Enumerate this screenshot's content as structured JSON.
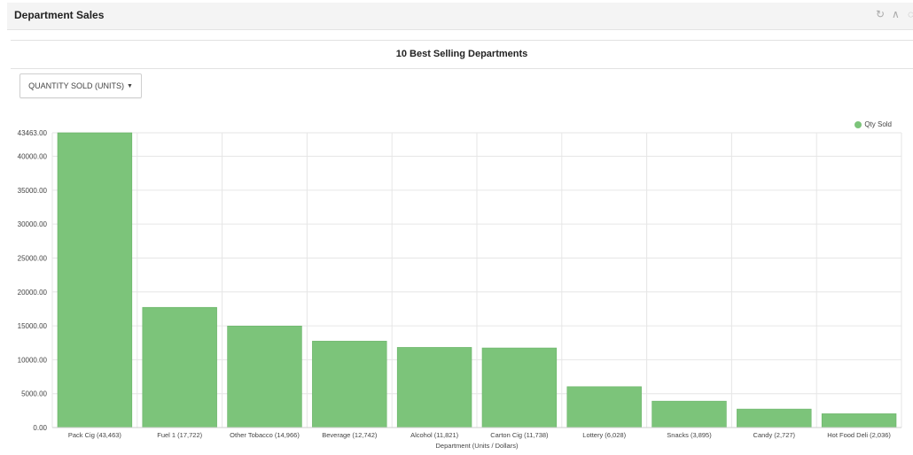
{
  "panel": {
    "title": "Department Sales",
    "icons": [
      "refresh-icon",
      "collapse-icon",
      "settings-icon"
    ]
  },
  "chart_title": "10 Best Selling Departments",
  "metric_selector": {
    "label": "QUANTITY SOLD (UNITS)"
  },
  "colors": {
    "bar": "#7cc47a",
    "bar_stroke": "#6ab368",
    "grid": "#e6e6e6"
  },
  "chart_data": {
    "type": "bar",
    "categories": [
      "Pack Cig (43,463)",
      "Fuel 1 (17,722)",
      "Other Tobacco (14,966)",
      "Beverage (12,742)",
      "Alcohol (11,821)",
      "Carton Cig (11,738)",
      "Lottery (6,028)",
      "Snacks (3,895)",
      "Candy (2,727)",
      "Hot Food Deli (2,036)"
    ],
    "series": [
      {
        "name": "Qty Sold",
        "values": [
          43463,
          17722,
          14966,
          12742,
          11821,
          11738,
          6028,
          3895,
          2727,
          2036
        ]
      }
    ],
    "ylim": [
      0,
      43463
    ],
    "yticks": [
      0,
      5000,
      10000,
      15000,
      20000,
      25000,
      30000,
      35000,
      40000,
      43463
    ],
    "ytick_labels": [
      "0.00",
      "5000.00",
      "10000.00",
      "15000.00",
      "20000.00",
      "25000.00",
      "30000.00",
      "35000.00",
      "40000.00",
      "43463.00"
    ],
    "xlabel": "Department (Units / Dollars)",
    "ylabel": "",
    "grid": true,
    "legend_position": "top-right"
  }
}
